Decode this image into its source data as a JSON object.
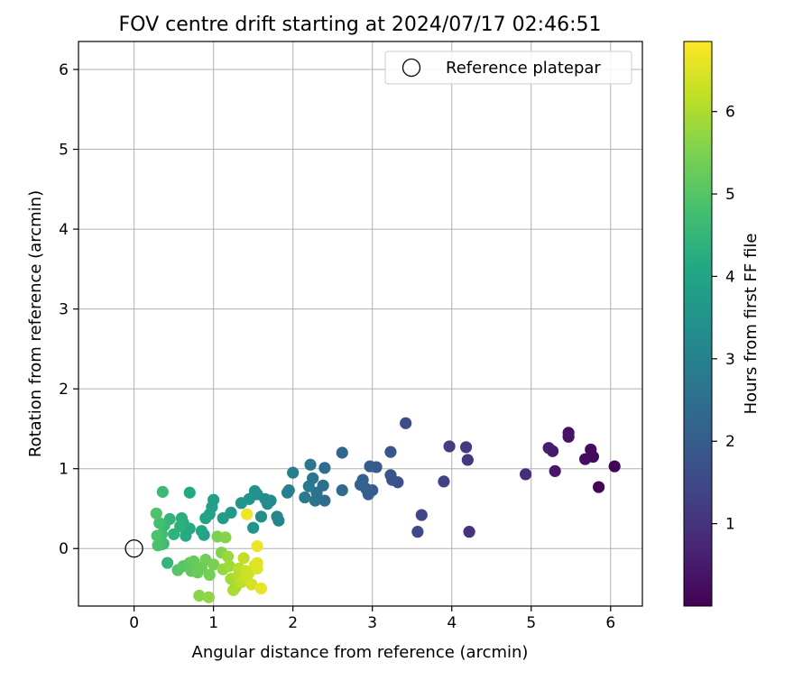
{
  "chart_data": {
    "type": "scatter",
    "title": "FOV centre drift starting at 2024/07/17 02:46:51",
    "xlabel": "Angular distance from reference (arcmin)",
    "ylabel": "Rotation from reference (arcmin)",
    "xlim": [
      -0.7,
      6.4
    ],
    "ylim": [
      -0.72,
      6.35
    ],
    "x_ticks": [
      0,
      1,
      2,
      3,
      4,
      5,
      6
    ],
    "y_ticks": [
      0,
      1,
      2,
      3,
      4,
      5,
      6
    ],
    "grid": true,
    "legend": {
      "position": "top-right",
      "entries": [
        "Reference platepar"
      ]
    },
    "reference_point": {
      "name": "Reference platepar",
      "x": 0,
      "y": 0
    },
    "colorbar": {
      "label": "Hours from first FF file",
      "colormap": "viridis",
      "range": [
        0.0,
        6.85
      ],
      "ticks": [
        1,
        2,
        3,
        4,
        5,
        6
      ]
    },
    "points": [
      [
        6.05,
        1.03,
        0.05
      ],
      [
        5.85,
        0.77,
        0.1
      ],
      [
        5.78,
        1.15,
        0.15
      ],
      [
        5.75,
        1.24,
        0.2
      ],
      [
        5.68,
        1.12,
        0.25
      ],
      [
        5.47,
        1.45,
        0.3
      ],
      [
        5.47,
        1.4,
        0.35
      ],
      [
        5.3,
        0.97,
        0.45
      ],
      [
        5.27,
        1.22,
        0.5
      ],
      [
        5.22,
        1.26,
        0.55
      ],
      [
        4.93,
        0.93,
        0.85
      ],
      [
        4.22,
        0.21,
        1.0
      ],
      [
        4.2,
        1.11,
        1.1
      ],
      [
        4.18,
        1.27,
        1.15
      ],
      [
        3.97,
        1.28,
        1.25
      ],
      [
        3.9,
        0.84,
        1.35
      ],
      [
        3.62,
        0.42,
        1.45
      ],
      [
        3.57,
        0.21,
        1.5
      ],
      [
        3.42,
        1.57,
        1.6
      ],
      [
        3.32,
        0.83,
        1.7
      ],
      [
        3.25,
        0.86,
        1.75
      ],
      [
        3.23,
        0.92,
        1.8
      ],
      [
        3.23,
        1.21,
        1.85
      ],
      [
        3.05,
        1.02,
        1.9
      ],
      [
        3.0,
        0.73,
        1.95
      ],
      [
        2.97,
        1.03,
        2.0
      ],
      [
        2.95,
        0.68,
        2.05
      ],
      [
        2.92,
        0.75,
        2.1
      ],
      [
        2.88,
        0.86,
        2.15
      ],
      [
        2.85,
        0.8,
        2.2
      ],
      [
        2.62,
        1.2,
        2.3
      ],
      [
        2.62,
        0.73,
        2.35
      ],
      [
        2.4,
        0.6,
        2.4
      ],
      [
        2.4,
        1.01,
        2.45
      ],
      [
        2.38,
        0.79,
        2.5
      ],
      [
        2.3,
        0.7,
        2.55
      ],
      [
        2.28,
        0.6,
        2.6
      ],
      [
        2.25,
        0.88,
        2.65
      ],
      [
        2.22,
        1.05,
        2.7
      ],
      [
        2.2,
        0.78,
        2.75
      ],
      [
        2.15,
        0.64,
        2.8
      ],
      [
        2.0,
        0.95,
        2.9
      ],
      [
        1.95,
        0.73,
        2.95
      ],
      [
        1.93,
        0.7,
        3.0
      ],
      [
        1.82,
        0.35,
        3.1
      ],
      [
        1.8,
        0.4,
        3.15
      ],
      [
        1.72,
        0.6,
        3.2
      ],
      [
        1.68,
        0.56,
        3.25
      ],
      [
        1.65,
        0.62,
        3.3
      ],
      [
        1.6,
        0.4,
        3.35
      ],
      [
        1.55,
        0.68,
        3.4
      ],
      [
        1.52,
        0.72,
        3.45
      ],
      [
        1.5,
        0.26,
        3.5
      ],
      [
        1.45,
        0.62,
        3.55
      ],
      [
        1.35,
        0.57,
        3.6
      ],
      [
        1.22,
        0.45,
        3.7
      ],
      [
        1.12,
        0.38,
        3.75
      ],
      [
        1.0,
        0.61,
        3.8
      ],
      [
        0.98,
        0.52,
        3.85
      ],
      [
        0.95,
        0.43,
        3.9
      ],
      [
        0.9,
        0.38,
        3.95
      ],
      [
        0.88,
        0.17,
        4.0
      ],
      [
        0.85,
        0.22,
        4.05
      ],
      [
        0.7,
        0.7,
        4.1
      ],
      [
        0.7,
        0.25,
        4.15
      ],
      [
        0.65,
        0.16,
        4.2
      ],
      [
        0.62,
        0.32,
        4.25
      ],
      [
        0.6,
        0.38,
        4.3
      ],
      [
        0.58,
        0.28,
        4.35
      ],
      [
        0.5,
        0.18,
        4.4
      ],
      [
        0.45,
        0.37,
        4.45
      ],
      [
        0.42,
        -0.18,
        4.5
      ],
      [
        0.38,
        0.29,
        4.55
      ],
      [
        0.37,
        0.06,
        4.6
      ],
      [
        0.36,
        0.71,
        4.65
      ],
      [
        0.35,
        0.18,
        4.7
      ],
      [
        0.34,
        0.05,
        4.75
      ],
      [
        0.32,
        0.32,
        4.8
      ],
      [
        0.3,
        0.04,
        4.85
      ],
      [
        0.29,
        0.16,
        4.9
      ],
      [
        0.28,
        0.44,
        4.95
      ],
      [
        0.55,
        -0.27,
        5.0
      ],
      [
        0.62,
        -0.22,
        5.05
      ],
      [
        0.7,
        -0.18,
        5.1
      ],
      [
        0.72,
        -0.28,
        5.15
      ],
      [
        0.75,
        -0.16,
        5.2
      ],
      [
        0.8,
        -0.3,
        5.25
      ],
      [
        0.85,
        -0.24,
        5.3
      ],
      [
        0.9,
        -0.14,
        5.35
      ],
      [
        0.95,
        -0.33,
        5.4
      ],
      [
        1.0,
        -0.2,
        5.45
      ],
      [
        1.05,
        0.15,
        5.5
      ],
      [
        1.1,
        -0.05,
        5.55
      ],
      [
        1.15,
        0.14,
        5.6
      ],
      [
        0.82,
        -0.59,
        5.65
      ],
      [
        0.94,
        -0.61,
        5.7
      ],
      [
        1.12,
        -0.26,
        5.75
      ],
      [
        1.18,
        -0.1,
        5.8
      ],
      [
        1.2,
        -0.22,
        5.85
      ],
      [
        1.22,
        -0.38,
        5.9
      ],
      [
        1.25,
        -0.52,
        5.95
      ],
      [
        1.28,
        -0.48,
        6.0
      ],
      [
        1.3,
        -0.35,
        6.05
      ],
      [
        1.32,
        -0.25,
        6.1
      ],
      [
        1.35,
        -0.42,
        6.15
      ],
      [
        1.38,
        -0.12,
        6.2
      ],
      [
        1.4,
        -0.28,
        6.25
      ],
      [
        1.42,
        -0.36,
        6.3
      ],
      [
        1.45,
        -0.3,
        6.35
      ],
      [
        1.48,
        -0.45,
        6.4
      ],
      [
        1.52,
        -0.21,
        6.45
      ],
      [
        1.55,
        -0.25,
        6.5
      ],
      [
        1.55,
        -0.18,
        6.55
      ],
      [
        1.6,
        -0.5,
        6.6
      ],
      [
        1.55,
        0.03,
        6.65
      ],
      [
        1.42,
        0.43,
        6.7
      ]
    ]
  }
}
